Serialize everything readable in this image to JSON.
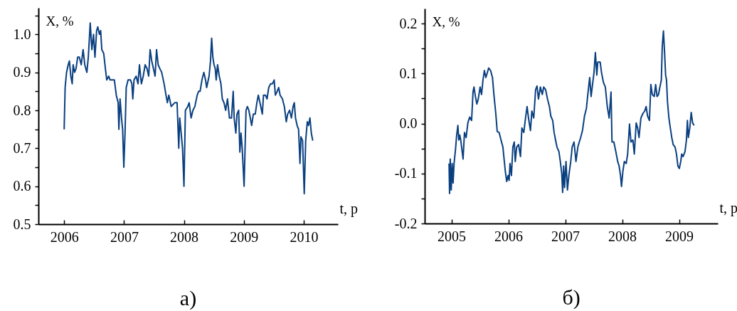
{
  "chart_data": [
    {
      "type": "line",
      "xlabel": "t, р",
      "ylabel": "X, %",
      "annotations": [
        "а)"
      ],
      "xlim": [
        2005.57,
        2010.57
      ],
      "xticks": [
        2006,
        2007,
        2008,
        2009,
        2010
      ],
      "ylim": [
        0.5,
        1.07
      ],
      "yticks": [
        0.5,
        {
          "value": 0.55,
          "label": null
        },
        0.6,
        {
          "value": 0.65,
          "label": null
        },
        0.7,
        {
          "value": 0.75,
          "label": null
        },
        0.8,
        {
          "value": 0.85,
          "label": null
        },
        0.9,
        {
          "value": 0.95,
          "label": null
        },
        {
          "value": 1,
          "label": "1.0"
        },
        {
          "value": 1.05,
          "label": null
        }
      ],
      "grid": false,
      "series": [
        {
          "color": "#0a3f80",
          "x": [
            2006.0,
            2006.016,
            2006.04,
            2006.067,
            2006.087,
            2006.111,
            2006.134,
            2006.15,
            2006.174,
            2006.198,
            2006.225,
            2006.253,
            2006.285,
            2006.316,
            2006.344,
            2006.379,
            2006.403,
            2006.435,
            2006.462,
            2006.49,
            2006.514,
            2006.542,
            2006.561,
            2006.589,
            2006.609,
            2006.628,
            2006.66,
            2006.688,
            2006.711,
            2006.743,
            2006.767,
            2006.806,
            2006.838,
            2006.87,
            2006.901,
            2006.913,
            2006.933,
            2006.957,
            2006.976,
            2006.996,
            2007.016,
            2007.036,
            2007.067,
            2007.107,
            2007.13,
            2007.146,
            2007.166,
            2007.202,
            2007.233,
            2007.257,
            2007.289,
            2007.32,
            2007.352,
            2007.383,
            2007.411,
            2007.435,
            2007.462,
            2007.49,
            2007.518,
            2007.542,
            2007.569,
            2007.597,
            2007.628,
            2007.668,
            2007.7,
            2007.723,
            2007.747,
            2007.787,
            2007.846,
            2007.885,
            2007.913,
            2007.929,
            2007.953,
            2007.976,
            2008.0,
            2008.024,
            2008.063,
            2008.087,
            2008.119,
            2008.15,
            2008.182,
            2008.221,
            2008.245,
            2008.269,
            2008.3,
            2008.332,
            2008.36,
            2008.379,
            2008.419,
            2008.443,
            2008.462,
            2008.482,
            2008.502,
            2008.522,
            2008.538,
            2008.561,
            2008.589,
            2008.617,
            2008.64,
            2008.668,
            2008.696,
            2008.727,
            2008.759,
            2008.794,
            2008.822,
            2008.838,
            2008.866,
            2008.885,
            2008.913,
            2008.933,
            2008.953,
            2008.972,
            2009.004,
            2009.036,
            2009.059,
            2009.083,
            2009.107,
            2009.13,
            2009.158,
            2009.19,
            2009.217,
            2009.241,
            2009.269,
            2009.308,
            2009.328,
            2009.36,
            2009.387,
            2009.415,
            2009.447,
            2009.478,
            2009.506,
            2009.526,
            2009.557,
            2009.581,
            2009.605,
            2009.644,
            2009.676,
            2009.708,
            2009.731,
            2009.763,
            2009.794,
            2009.822,
            2009.842,
            2009.862,
            2009.889,
            2009.913,
            2009.937,
            2009.953,
            2009.98,
            2010.008,
            2010.032,
            2010.059,
            2010.079,
            2010.103,
            2010.126,
            2010.15
          ],
          "values": [
            0.75,
            0.86,
            0.9,
            0.92,
            0.93,
            0.89,
            0.87,
            0.92,
            0.9,
            0.91,
            0.94,
            0.94,
            0.92,
            0.96,
            0.92,
            0.9,
            0.94,
            1.03,
            0.96,
            1.0,
            0.94,
            1.01,
            1.02,
            1.0,
            1.01,
            0.96,
            0.95,
            0.91,
            0.88,
            0.89,
            0.88,
            0.88,
            0.88,
            0.84,
            0.82,
            0.75,
            0.83,
            0.78,
            0.75,
            0.65,
            0.74,
            0.86,
            0.88,
            0.88,
            0.87,
            0.83,
            0.88,
            0.89,
            0.87,
            0.92,
            0.87,
            0.89,
            0.92,
            0.91,
            0.89,
            0.96,
            0.93,
            0.91,
            0.89,
            0.96,
            0.92,
            0.91,
            0.9,
            0.87,
            0.84,
            0.82,
            0.84,
            0.81,
            0.82,
            0.82,
            0.7,
            0.78,
            0.74,
            0.7,
            0.6,
            0.8,
            0.81,
            0.82,
            0.78,
            0.8,
            0.81,
            0.84,
            0.85,
            0.85,
            0.88,
            0.9,
            0.88,
            0.86,
            0.89,
            0.93,
            0.99,
            0.94,
            0.92,
            0.91,
            0.88,
            0.92,
            0.89,
            0.87,
            0.83,
            0.82,
            0.8,
            0.83,
            0.78,
            0.78,
            0.85,
            0.78,
            0.74,
            0.79,
            0.8,
            0.69,
            0.74,
            0.7,
            0.6,
            0.8,
            0.81,
            0.8,
            0.78,
            0.76,
            0.79,
            0.79,
            0.82,
            0.84,
            0.82,
            0.79,
            0.84,
            0.84,
            0.83,
            0.86,
            0.87,
            0.87,
            0.88,
            0.84,
            0.85,
            0.86,
            0.84,
            0.83,
            0.81,
            0.77,
            0.79,
            0.8,
            0.78,
            0.81,
            0.82,
            0.78,
            0.76,
            0.75,
            0.66,
            0.73,
            0.72,
            0.58,
            0.72,
            0.77,
            0.76,
            0.78,
            0.74,
            0.72
          ]
        }
      ]
    },
    {
      "type": "line",
      "xlabel": "t, р",
      "ylabel": "X, %",
      "annotations": [
        "б)"
      ],
      "xlim": [
        2004.53,
        2009.68
      ],
      "xticks": [
        2005,
        2006,
        2007,
        2008,
        2009
      ],
      "ylim": [
        -0.2,
        0.23
      ],
      "yticks": [
        -0.2,
        {
          "value": -0.15,
          "label": null
        },
        -0.1,
        {
          "value": -0.05,
          "label": null
        },
        {
          "value": 0,
          "label": "0.0"
        },
        {
          "value": 0.05,
          "label": null
        },
        0.1,
        {
          "value": 0.15,
          "label": null
        },
        0.2
      ],
      "grid": false,
      "series": [
        {
          "color": "#0a3f80",
          "x": [
            2004.958,
            2004.967,
            2004.979,
            2004.996,
            2005.013,
            2005.029,
            2005.046,
            2005.071,
            2005.092,
            2005.113,
            2005.129,
            2005.146,
            2005.163,
            2005.188,
            2005.204,
            2005.229,
            2005.258,
            2005.288,
            2005.321,
            2005.354,
            2005.379,
            2005.396,
            2005.421,
            2005.446,
            2005.471,
            2005.504,
            2005.529,
            2005.554,
            2005.579,
            2005.604,
            2005.629,
            2005.654,
            2005.688,
            2005.721,
            2005.746,
            2005.779,
            2005.804,
            2005.838,
            2005.871,
            2005.904,
            2005.929,
            2005.946,
            2005.971,
            2005.996,
            2006.013,
            2006.029,
            2006.054,
            2006.079,
            2006.104,
            2006.121,
            2006.146,
            2006.179,
            2006.213,
            2006.238,
            2006.271,
            2006.296,
            2006.329,
            2006.354,
            2006.388,
            2006.413,
            2006.446,
            2006.479,
            2006.504,
            2006.529,
            2006.563,
            2006.596,
            2006.621,
            2006.654,
            2006.688,
            2006.721,
            2006.746,
            2006.779,
            2006.804,
            2006.829,
            2006.854,
            2006.888,
            2006.913,
            2006.938,
            2006.954,
            2006.971,
            2006.988,
            2007.013,
            2007.038,
            2007.063,
            2007.096,
            2007.121,
            2007.154,
            2007.188,
            2007.221,
            2007.246,
            2007.271,
            2007.304,
            2007.338,
            2007.371,
            2007.396,
            2007.429,
            2007.454,
            2007.479,
            2007.504,
            2007.529,
            2007.554,
            2007.571,
            2007.613,
            2007.638,
            2007.671,
            2007.704,
            2007.738,
            2007.771,
            2007.804,
            2007.821,
            2007.854,
            2007.888,
            2007.921,
            2007.946,
            2007.971,
            2007.988,
            2008.013,
            2008.038,
            2008.071,
            2008.096,
            2008.129,
            2008.154,
            2008.188,
            2008.213,
            2008.246,
            2008.271,
            2008.296,
            2008.329,
            2008.363,
            2008.396,
            2008.421,
            2008.446,
            2008.479,
            2008.504,
            2008.529,
            2008.563,
            2008.588,
            2008.613,
            2008.638,
            2008.663,
            2008.688,
            2008.704,
            2008.725,
            2008.746,
            2008.763,
            2008.779,
            2008.796,
            2008.821,
            2008.846,
            2008.871,
            2008.896,
            2008.929,
            2008.954,
            2008.979,
            2009.004,
            2009.029,
            2009.046,
            2009.071,
            2009.104,
            2009.129,
            2009.146,
            2009.163,
            2009.188,
            2009.213,
            2009.238,
            2009.263
          ],
          "values": [
            -0.08,
            -0.14,
            -0.071,
            -0.133,
            -0.08,
            -0.119,
            -0.08,
            -0.052,
            -0.023,
            -0.004,
            -0.033,
            -0.023,
            -0.033,
            -0.056,
            -0.071,
            -0.018,
            -0.028,
            0.001,
            0.013,
            0.006,
            0.063,
            0.073,
            0.054,
            0.039,
            0.049,
            0.073,
            0.058,
            0.087,
            0.106,
            0.092,
            0.101,
            0.111,
            0.106,
            0.092,
            0.058,
            0.02,
            -0.016,
            -0.018,
            -0.033,
            -0.047,
            -0.076,
            -0.095,
            -0.116,
            -0.104,
            -0.114,
            -0.08,
            -0.104,
            -0.047,
            -0.037,
            -0.076,
            -0.047,
            -0.042,
            -0.066,
            -0.009,
            -0.018,
            0.006,
            0.034,
            0.011,
            -0.014,
            0.025,
            0.011,
            0.068,
            0.075,
            0.049,
            0.073,
            0.058,
            0.073,
            0.068,
            0.049,
            0.034,
            0.015,
            0.006,
            -0.018,
            -0.033,
            -0.047,
            -0.056,
            -0.076,
            -0.1,
            -0.138,
            -0.085,
            -0.128,
            -0.076,
            -0.133,
            -0.104,
            -0.076,
            -0.047,
            -0.037,
            -0.076,
            -0.047,
            -0.037,
            -0.028,
            -0.013,
            0.015,
            0.03,
            0.058,
            0.092,
            0.054,
            0.078,
            0.101,
            0.142,
            0.097,
            0.123,
            0.123,
            0.101,
            0.082,
            0.073,
            0.034,
            0.011,
            0.063,
            -0.037,
            -0.037,
            -0.056,
            -0.076,
            -0.085,
            -0.104,
            -0.126,
            -0.095,
            -0.076,
            -0.08,
            -0.061,
            -0.001,
            -0.037,
            -0.033,
            -0.061,
            0.001,
            -0.009,
            -0.028,
            0.011,
            0.02,
            0.025,
            0.034,
            0.015,
            0.006,
            0.078,
            0.058,
            0.054,
            0.078,
            0.054,
            0.058,
            0.073,
            0.087,
            0.154,
            0.185,
            0.14,
            0.097,
            0.087,
            0.044,
            0.011,
            -0.009,
            -0.028,
            -0.042,
            -0.047,
            -0.061,
            -0.085,
            -0.09,
            -0.076,
            -0.061,
            -0.066,
            -0.056,
            -0.033,
            0.006,
            -0.028,
            -0.009,
            0.022,
            0.001,
            -0.004
          ]
        }
      ]
    }
  ]
}
